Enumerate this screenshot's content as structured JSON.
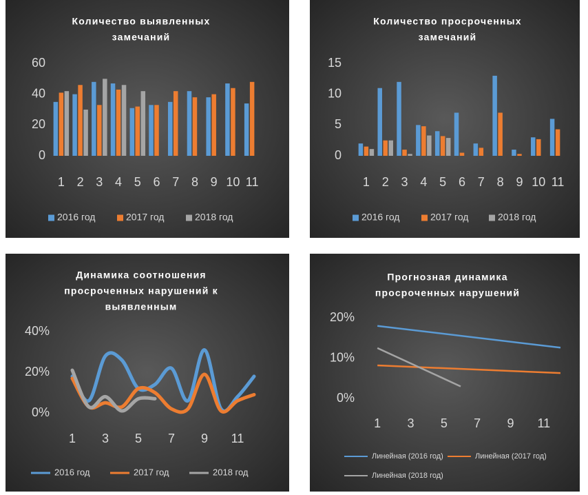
{
  "chart_data": [
    {
      "type": "bar",
      "title": [
        "Количество выявленных",
        "замечаний"
      ],
      "categories": [
        1,
        2,
        3,
        4,
        5,
        6,
        7,
        8,
        9,
        10,
        11
      ],
      "series": [
        {
          "name": "2016 год",
          "color": "#5b9bd5",
          "values": [
            35,
            40,
            48,
            47,
            31,
            33,
            35,
            42,
            38,
            47,
            34
          ]
        },
        {
          "name": "2017 год",
          "color": "#ed7d31",
          "values": [
            41,
            46,
            33,
            43,
            32,
            33,
            42,
            38,
            40,
            44,
            48
          ]
        },
        {
          "name": "2018 год",
          "color": "#a5a5a5",
          "values": [
            42,
            30,
            50,
            46,
            42,
            null,
            null,
            null,
            null,
            null,
            null
          ]
        }
      ],
      "ylim": [
        0,
        60
      ],
      "yticks": [
        0,
        20,
        40,
        60
      ],
      "legend": "bottom"
    },
    {
      "type": "bar",
      "title": [
        "Количество просроченных",
        "замечаний"
      ],
      "categories": [
        1,
        2,
        3,
        4,
        5,
        6,
        7,
        8,
        9,
        10,
        11
      ],
      "series": [
        {
          "name": "2016 год",
          "color": "#5b9bd5",
          "values": [
            2,
            11,
            12,
            5,
            4,
            7,
            2,
            13,
            1,
            3,
            6
          ]
        },
        {
          "name": "2017 год",
          "color": "#ed7d31",
          "values": [
            1.5,
            2.5,
            1,
            4.8,
            3.2,
            0.5,
            1.3,
            7,
            0.3,
            2.7,
            4.3
          ]
        },
        {
          "name": "2018 год",
          "color": "#a5a5a5",
          "values": [
            1.1,
            2.5,
            0.3,
            3.3,
            2.9,
            null,
            null,
            null,
            null,
            null,
            null
          ]
        }
      ],
      "ylim": [
        0,
        15
      ],
      "yticks": [
        0,
        5,
        10,
        15
      ],
      "legend": "bottom"
    },
    {
      "type": "line",
      "title": [
        "Динамика соотношения",
        "просроченных нарушений к",
        "выявленным"
      ],
      "categories": [
        1,
        null,
        3,
        null,
        5,
        null,
        7,
        null,
        9,
        null,
        11,
        null
      ],
      "series": [
        {
          "name": "2016 год",
          "color": "#5b9bd5",
          "values": [
            18,
            6,
            28,
            26,
            12,
            14,
            22,
            6,
            31,
            2,
            8,
            18
          ]
        },
        {
          "name": "2017 год",
          "color": "#ed7d31",
          "values": [
            17,
            3,
            5,
            3,
            12,
            10,
            2,
            2,
            19,
            1,
            6,
            9
          ]
        },
        {
          "name": "2018 год",
          "color": "#a5a5a5",
          "values": [
            21,
            3,
            8,
            1,
            7,
            7,
            null,
            null,
            null,
            null,
            null,
            null
          ]
        }
      ],
      "smooth": true,
      "ylim": [
        0,
        40
      ],
      "yticks": [
        {
          "value": 0,
          "label": "0%"
        },
        {
          "value": 20,
          "label": "20%"
        },
        {
          "value": 40,
          "label": "40%"
        }
      ],
      "legend": "bottom"
    },
    {
      "type": "trend",
      "title": [
        "Прогнозная динамика",
        "просроченных нарушений"
      ],
      "series": [
        {
          "name": "Линейная (2016 год)",
          "color": "#5b9bd5",
          "x": [
            1,
            12
          ],
          "values": [
            18,
            12.6
          ]
        },
        {
          "name": "Линейная (2017 год)",
          "color": "#ed7d31",
          "x": [
            1,
            12
          ],
          "values": [
            8.2,
            6.3
          ]
        },
        {
          "name": "Линейная (2018 год)",
          "color": "#a5a5a5",
          "x": [
            1,
            6
          ],
          "values": [
            12.5,
            3
          ]
        }
      ],
      "xlim": [
        0,
        12
      ],
      "xticks": [
        1,
        3,
        5,
        7,
        9,
        11
      ],
      "ylim": [
        0,
        20
      ],
      "yticks": [
        {
          "value": 0,
          "label": "0%"
        },
        {
          "value": 10,
          "label": "10%"
        },
        {
          "value": 20,
          "label": "20%"
        }
      ],
      "legend": "bottom"
    }
  ]
}
